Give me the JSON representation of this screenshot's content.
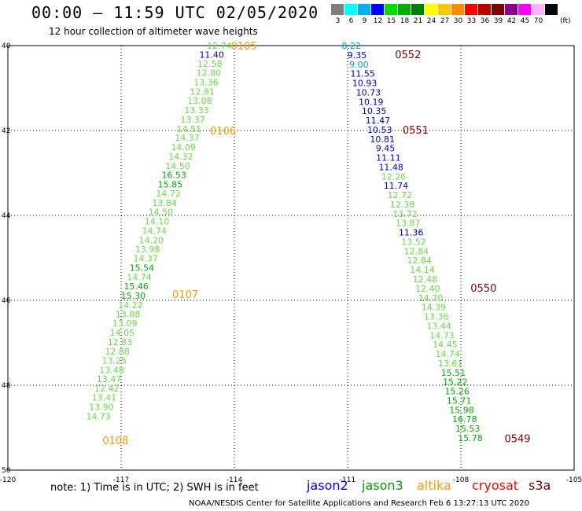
{
  "header": {
    "title": "00:00 – 11:59 UTC 02/05/2020",
    "subtitle": "12 hour collection of altimeter wave heights"
  },
  "color_scale": {
    "unit": "(ft)",
    "bins": [
      {
        "label": "3",
        "color": "#7f7f7f"
      },
      {
        "label": "6",
        "color": "#00ffff"
      },
      {
        "label": "9",
        "color": "#00b0ff"
      },
      {
        "label": "12",
        "color": "#0000ff"
      },
      {
        "label": "15",
        "color": "#00dd00"
      },
      {
        "label": "18",
        "color": "#00b000"
      },
      {
        "label": "21",
        "color": "#008000"
      },
      {
        "label": "24",
        "color": "#ffff00"
      },
      {
        "label": "27",
        "color": "#ffc800"
      },
      {
        "label": "30",
        "color": "#ff8c00"
      },
      {
        "label": "33",
        "color": "#ff0000"
      },
      {
        "label": "36",
        "color": "#c00000"
      },
      {
        "label": "39",
        "color": "#800000"
      },
      {
        "label": "42",
        "color": "#900090"
      },
      {
        "label": "45",
        "color": "#ff00ff"
      },
      {
        "label": "70",
        "color": "#ffb0ff"
      },
      {
        "label": "",
        "color": "#000000"
      }
    ]
  },
  "chart_data": {
    "type": "scatter",
    "x_ticks": [
      "-120",
      "-117",
      "-114",
      "-111",
      "-108",
      "-105"
    ],
    "y_ticks": [
      "40",
      "42",
      "44",
      "46",
      "48",
      "50"
    ],
    "xlim": [
      -120,
      -105
    ],
    "ylim": [
      40,
      50
    ],
    "grid": true,
    "color_levels": {
      "light_green": "#66dd44",
      "green": "#00b000",
      "dark_green": "#008000",
      "cyan": "#00a0d0",
      "blue": "#0000d0",
      "orange": "#ff9900",
      "dark_red": "#800000"
    },
    "tracks": [
      {
        "name": "track-west",
        "points": [
          {
            "lon": -114.4,
            "lat": 40.0,
            "value": "12.74",
            "color": "light_green"
          },
          {
            "lon": -114.6,
            "lat": 40.21,
            "value": "11.40",
            "color": "blue"
          },
          {
            "lon": -114.65,
            "lat": 40.43,
            "value": "12.58",
            "color": "light_green"
          },
          {
            "lon": -114.68,
            "lat": 40.64,
            "value": "12.80",
            "color": "light_green"
          },
          {
            "lon": -114.75,
            "lat": 40.86,
            "value": "13.36",
            "color": "light_green"
          },
          {
            "lon": -114.85,
            "lat": 41.08,
            "value": "12.81",
            "color": "light_green"
          },
          {
            "lon": -114.92,
            "lat": 41.3,
            "value": "13.08",
            "color": "light_green"
          },
          {
            "lon": -115.0,
            "lat": 41.52,
            "value": "13.33",
            "color": "light_green"
          },
          {
            "lon": -115.1,
            "lat": 41.74,
            "value": "13.37",
            "color": "light_green"
          },
          {
            "lon": -115.2,
            "lat": 41.96,
            "value": "14.51",
            "color": "light_green"
          },
          {
            "lon": -115.25,
            "lat": 42.17,
            "value": "14.37",
            "color": "light_green"
          },
          {
            "lon": -115.35,
            "lat": 42.39,
            "value": "14.09",
            "color": "light_green"
          },
          {
            "lon": -115.42,
            "lat": 42.61,
            "value": "14.32",
            "color": "light_green"
          },
          {
            "lon": -115.5,
            "lat": 42.83,
            "value": "14.50",
            "color": "light_green"
          },
          {
            "lon": -115.6,
            "lat": 43.05,
            "value": "16.53",
            "color": "green"
          },
          {
            "lon": -115.7,
            "lat": 43.27,
            "value": "15.85",
            "color": "green"
          },
          {
            "lon": -115.75,
            "lat": 43.48,
            "value": "14.72",
            "color": "light_green"
          },
          {
            "lon": -115.85,
            "lat": 43.7,
            "value": "13.84",
            "color": "light_green"
          },
          {
            "lon": -115.95,
            "lat": 43.92,
            "value": "14.50",
            "color": "light_green"
          },
          {
            "lon": -116.05,
            "lat": 44.14,
            "value": "14.10",
            "color": "light_green"
          },
          {
            "lon": -116.12,
            "lat": 44.36,
            "value": "14.74",
            "color": "light_green"
          },
          {
            "lon": -116.2,
            "lat": 44.58,
            "value": "14.20",
            "color": "light_green"
          },
          {
            "lon": -116.3,
            "lat": 44.8,
            "value": "13.98",
            "color": "light_green"
          },
          {
            "lon": -116.35,
            "lat": 45.01,
            "value": "14.37",
            "color": "light_green"
          },
          {
            "lon": -116.45,
            "lat": 45.23,
            "value": "15.54",
            "color": "green"
          },
          {
            "lon": -116.52,
            "lat": 45.45,
            "value": "14.74",
            "color": "light_green"
          },
          {
            "lon": -116.6,
            "lat": 45.67,
            "value": "15.46",
            "color": "green"
          },
          {
            "lon": -116.68,
            "lat": 45.89,
            "value": "15.30",
            "color": "green"
          },
          {
            "lon": -116.75,
            "lat": 46.11,
            "value": "14.22",
            "color": "light_green"
          },
          {
            "lon": -116.82,
            "lat": 46.32,
            "value": "13.88",
            "color": "light_green"
          },
          {
            "lon": -116.9,
            "lat": 46.54,
            "value": "13.09",
            "color": "light_green"
          },
          {
            "lon": -116.97,
            "lat": 46.76,
            "value": "14.05",
            "color": "light_green"
          },
          {
            "lon": -117.03,
            "lat": 46.98,
            "value": "12.83",
            "color": "light_green"
          },
          {
            "lon": -117.1,
            "lat": 47.2,
            "value": "12.88",
            "color": "light_green"
          },
          {
            "lon": -117.18,
            "lat": 47.42,
            "value": "13.25",
            "color": "light_green"
          },
          {
            "lon": -117.25,
            "lat": 47.64,
            "value": "13.48",
            "color": "light_green"
          },
          {
            "lon": -117.32,
            "lat": 47.85,
            "value": "13.47",
            "color": "light_green"
          },
          {
            "lon": -117.38,
            "lat": 48.07,
            "value": "12.42",
            "color": "light_green"
          },
          {
            "lon": -117.45,
            "lat": 48.29,
            "value": "13.41",
            "color": "light_green"
          },
          {
            "lon": -117.52,
            "lat": 48.51,
            "value": "13.90",
            "color": "light_green"
          },
          {
            "lon": -117.6,
            "lat": 48.73,
            "value": "14.73",
            "color": "light_green"
          }
        ]
      },
      {
        "name": "track-east",
        "points": [
          {
            "lon": -110.9,
            "lat": 40.0,
            "value": "8.22",
            "color": "cyan"
          },
          {
            "lon": -110.75,
            "lat": 40.22,
            "value": "9.35",
            "color": "blue"
          },
          {
            "lon": -110.7,
            "lat": 40.44,
            "value": "9.00",
            "color": "cyan"
          },
          {
            "lon": -110.6,
            "lat": 40.66,
            "value": "11.55",
            "color": "blue"
          },
          {
            "lon": -110.55,
            "lat": 40.88,
            "value": "10.93",
            "color": "blue"
          },
          {
            "lon": -110.45,
            "lat": 41.1,
            "value": "10.73",
            "color": "blue"
          },
          {
            "lon": -110.38,
            "lat": 41.32,
            "value": "10.19",
            "color": "blue"
          },
          {
            "lon": -110.3,
            "lat": 41.54,
            "value": "10.35",
            "color": "blue"
          },
          {
            "lon": -110.2,
            "lat": 41.76,
            "value": "11.47",
            "color": "blue"
          },
          {
            "lon": -110.15,
            "lat": 41.98,
            "value": "10.53",
            "color": "blue"
          },
          {
            "lon": -110.08,
            "lat": 42.2,
            "value": "10.81",
            "color": "blue"
          },
          {
            "lon": -110.0,
            "lat": 42.42,
            "value": "9.45",
            "color": "blue"
          },
          {
            "lon": -109.92,
            "lat": 42.64,
            "value": "11.11",
            "color": "blue"
          },
          {
            "lon": -109.85,
            "lat": 42.86,
            "value": "11.48",
            "color": "blue"
          },
          {
            "lon": -109.78,
            "lat": 43.08,
            "value": "12.26",
            "color": "light_green"
          },
          {
            "lon": -109.72,
            "lat": 43.3,
            "value": "11.74",
            "color": "blue"
          },
          {
            "lon": -109.62,
            "lat": 43.52,
            "value": "12.72",
            "color": "light_green"
          },
          {
            "lon": -109.55,
            "lat": 43.74,
            "value": "12.38",
            "color": "light_green"
          },
          {
            "lon": -109.48,
            "lat": 43.96,
            "value": "13.72",
            "color": "light_green"
          },
          {
            "lon": -109.4,
            "lat": 44.18,
            "value": "13.87",
            "color": "light_green"
          },
          {
            "lon": -109.32,
            "lat": 44.4,
            "value": "11.36",
            "color": "blue"
          },
          {
            "lon": -109.25,
            "lat": 44.62,
            "value": "13.52",
            "color": "light_green"
          },
          {
            "lon": -109.18,
            "lat": 44.84,
            "value": "12.84",
            "color": "light_green"
          },
          {
            "lon": -109.1,
            "lat": 45.06,
            "value": "12.84",
            "color": "light_green"
          },
          {
            "lon": -109.02,
            "lat": 45.28,
            "value": "14.14",
            "color": "light_green"
          },
          {
            "lon": -108.95,
            "lat": 45.5,
            "value": "12.48",
            "color": "light_green"
          },
          {
            "lon": -108.88,
            "lat": 45.72,
            "value": "12.40",
            "color": "light_green"
          },
          {
            "lon": -108.8,
            "lat": 45.94,
            "value": "14.70",
            "color": "light_green"
          },
          {
            "lon": -108.72,
            "lat": 46.16,
            "value": "14.39",
            "color": "light_green"
          },
          {
            "lon": -108.65,
            "lat": 46.38,
            "value": "13.36",
            "color": "light_green"
          },
          {
            "lon": -108.58,
            "lat": 46.6,
            "value": "13.44",
            "color": "light_green"
          },
          {
            "lon": -108.5,
            "lat": 46.82,
            "value": "14.73",
            "color": "light_green"
          },
          {
            "lon": -108.42,
            "lat": 47.04,
            "value": "14.45",
            "color": "light_green"
          },
          {
            "lon": -108.35,
            "lat": 47.26,
            "value": "14.74",
            "color": "light_green"
          },
          {
            "lon": -108.28,
            "lat": 47.48,
            "value": "13.61",
            "color": "light_green"
          },
          {
            "lon": -108.2,
            "lat": 47.7,
            "value": "15.51",
            "color": "green"
          },
          {
            "lon": -108.15,
            "lat": 47.92,
            "value": "15.22",
            "color": "green"
          },
          {
            "lon": -108.1,
            "lat": 48.14,
            "value": "15.26",
            "color": "green"
          },
          {
            "lon": -108.05,
            "lat": 48.36,
            "value": "15.71",
            "color": "green"
          },
          {
            "lon": -107.98,
            "lat": 48.58,
            "value": "15.98",
            "color": "green"
          },
          {
            "lon": -107.9,
            "lat": 48.8,
            "value": "16.78",
            "color": "green"
          },
          {
            "lon": -107.82,
            "lat": 49.02,
            "value": "15.53",
            "color": "green"
          },
          {
            "lon": -107.75,
            "lat": 49.24,
            "value": "15.78",
            "color": "green"
          }
        ]
      }
    ],
    "time_labels": [
      {
        "lon": -113.75,
        "lat": 40.0,
        "text": "0105",
        "color": "orange"
      },
      {
        "lon": -114.3,
        "lat": 42.0,
        "text": "0106",
        "color": "orange"
      },
      {
        "lon": -115.3,
        "lat": 45.85,
        "text": "0107",
        "color": "orange"
      },
      {
        "lon": -117.15,
        "lat": 49.3,
        "text": "0108",
        "color": "orange"
      },
      {
        "lon": -109.4,
        "lat": 40.2,
        "text": "0552",
        "color": "dark_red"
      },
      {
        "lon": -109.2,
        "lat": 41.98,
        "text": "0551",
        "color": "dark_red"
      },
      {
        "lon": -107.4,
        "lat": 45.7,
        "text": "0550",
        "color": "dark_red"
      },
      {
        "lon": -106.5,
        "lat": 49.25,
        "text": "0549",
        "color": "dark_red"
      }
    ]
  },
  "note": "note:  1) Time is in UTC;  2) SWH is in feet",
  "legend": [
    {
      "text": "jason2",
      "color": "#0000ff"
    },
    {
      "text": "jason3",
      "color": "#00a000"
    },
    {
      "text": "altika",
      "color": "#ff9900"
    },
    {
      "text": "cryosat",
      "color": "#ff0000"
    },
    {
      "text": "s3a",
      "color": "#800000"
    }
  ],
  "footer": "NOAA/NESDIS Center for Satellite Applications and Research    Feb  6 13:27:13 UTC 2020"
}
